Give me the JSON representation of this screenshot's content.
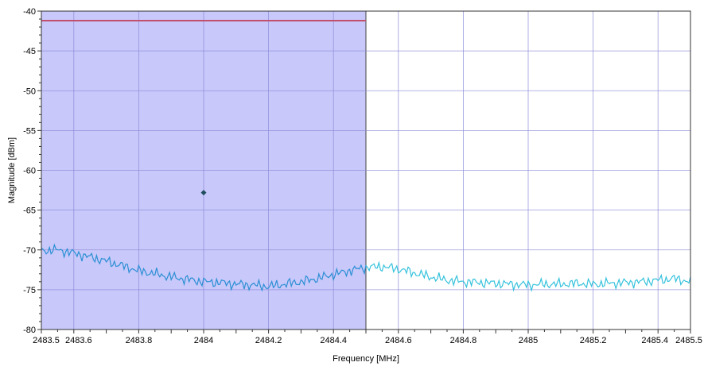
{
  "chart_data": {
    "type": "line",
    "xlabel": "Frequency [MHz]",
    "ylabel": "Magnitude [dBm]",
    "xlim": [
      2483.5,
      2485.5
    ],
    "ylim": [
      -80,
      -40
    ],
    "x_ticks": [
      2483.5,
      2483.6,
      2483.8,
      2484,
      2484.2,
      2484.4,
      2484.6,
      2484.8,
      2485,
      2485.2,
      2485.4,
      2485.5
    ],
    "x_tick_labels": [
      "2483.5",
      "2483.6",
      "2483.8",
      "2484",
      "2484.2",
      "2484.4",
      "2484.6",
      "2484.8",
      "2485",
      "2485.2",
      "2485.4",
      "2485.5"
    ],
    "y_ticks": [
      -40,
      -45,
      -50,
      -55,
      -60,
      -65,
      -70,
      -75,
      -80
    ],
    "y_tick_labels": [
      "-40",
      "-45",
      "-50",
      "-55",
      "-60",
      "-65",
      "-70",
      "-75",
      "-80"
    ],
    "grid": true,
    "shaded_region": {
      "x_start": 2483.5,
      "x_end": 2484.5,
      "color": "#c8c8fa"
    },
    "limit_line": {
      "x_start": 2483.5,
      "x_end": 2484.5,
      "y": -41.2,
      "color": "#c0506e"
    },
    "marker": {
      "x": 2484.0,
      "y": -62.8,
      "color": "#1f4f5f"
    },
    "series": [
      {
        "color": "#2aa6d6",
        "x": [
          2483.5,
          2483.55,
          2483.6,
          2483.65,
          2483.7,
          2483.75,
          2483.8,
          2483.85,
          2483.9,
          2483.95,
          2484.0,
          2484.05,
          2484.1,
          2484.15,
          2484.2,
          2484.25,
          2484.3,
          2484.35,
          2484.4,
          2484.45,
          2484.5,
          2484.55,
          2484.6,
          2484.65,
          2484.7,
          2484.75,
          2484.8,
          2484.85,
          2484.9,
          2484.95,
          2485.0,
          2485.05,
          2485.1,
          2485.15,
          2485.2,
          2485.25,
          2485.3,
          2485.35,
          2485.4,
          2485.45,
          2485.5
        ],
        "values": [
          -70.1,
          -70.0,
          -70.4,
          -70.9,
          -71.4,
          -72.0,
          -72.6,
          -73.0,
          -73.4,
          -73.7,
          -74.0,
          -74.1,
          -74.3,
          -74.4,
          -74.6,
          -74.3,
          -74.0,
          -73.6,
          -73.1,
          -72.6,
          -72.2,
          -72.1,
          -72.4,
          -72.9,
          -73.4,
          -73.8,
          -74.0,
          -74.1,
          -74.2,
          -74.3,
          -74.4,
          -74.3,
          -74.3,
          -74.2,
          -74.3,
          -74.2,
          -74.1,
          -74.0,
          -73.8,
          -73.6,
          -74.0
        ]
      }
    ]
  }
}
